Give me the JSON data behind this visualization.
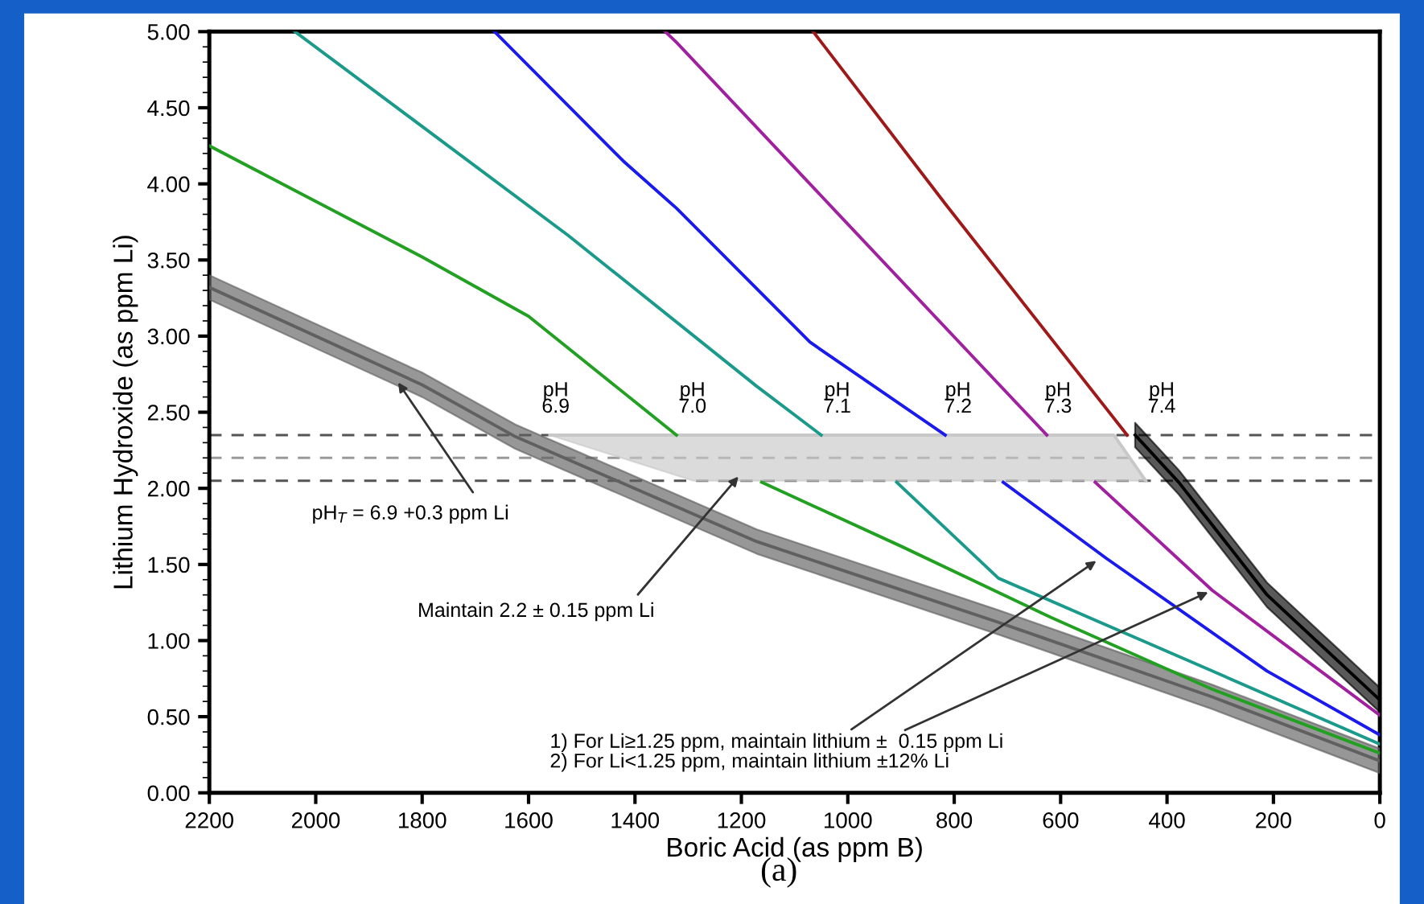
{
  "chart_data": {
    "type": "line",
    "xlabel": "Boric Acid (as ppm B)",
    "ylabel": "Lithium Hydroxide (as ppm Li)",
    "xlim": [
      2200,
      0
    ],
    "xticks": [
      2200,
      2000,
      1800,
      1600,
      1400,
      1200,
      1000,
      800,
      600,
      400,
      200,
      0
    ],
    "ylim": [
      0,
      5
    ],
    "yticks": [
      {
        "value": 0,
        "label": "0.00"
      },
      {
        "value": 0.5,
        "label": "0.50"
      },
      {
        "value": 1,
        "label": "1.00"
      },
      {
        "value": 1.5,
        "label": "1.50"
      },
      {
        "value": 2,
        "label": "2.00"
      },
      {
        "value": 2.5,
        "label": "2.50"
      },
      {
        "value": 3,
        "label": "3.00"
      },
      {
        "value": 3.5,
        "label": "3.50"
      },
      {
        "value": 4,
        "label": "4.00"
      },
      {
        "value": 4.5,
        "label": "4.50"
      },
      {
        "value": 5,
        "label": "5.00"
      }
    ],
    "grid": false,
    "legend": false,
    "series": [
      {
        "color": "#c8c8c8",
        "x": [
          1560,
          1290,
          500,
          440
        ],
        "values": [
          2.35,
          2.35,
          2.35,
          2.05
        ],
        "lower": [
          2.35,
          2.05,
          2.05,
          2.05
        ],
        "upper": [
          2.35,
          2.35,
          2.35,
          2.05
        ]
      },
      {
        "color": "#606060",
        "x": [
          2200,
          1800,
          1625,
          1171,
          717,
          315,
          0
        ],
        "values": [
          3.32,
          2.68,
          2.34,
          1.65,
          1.12,
          0.63,
          0.21
        ],
        "lower": [
          3.24,
          2.6,
          2.26,
          1.57,
          1.04,
          0.55,
          0.13
        ],
        "upper": [
          3.4,
          2.76,
          2.42,
          1.73,
          1.2,
          0.71,
          0.29
        ]
      },
      {
        "color": "#22a022",
        "x": [
          2200,
          1800,
          1600,
          1322,
          null,
          1162,
          900,
          617,
          315,
          0
        ],
        "values": [
          4.25,
          3.52,
          3.13,
          2.35,
          null,
          2.04,
          1.62,
          1.15,
          0.68,
          0.26
        ]
      },
      {
        "color": "#1a9a8a",
        "x": [
          2039,
          1525,
          1171,
          1050,
          null,
          908,
          717,
          315,
          0
        ],
        "values": [
          5,
          3.66,
          2.67,
          2.35,
          null,
          2.04,
          1.41,
          0.8,
          0.32
        ]
      },
      {
        "color": "#1a1aee",
        "x": [
          1664,
          1422,
          1322,
          1071,
          817,
          null,
          708,
          514,
          212,
          0
        ],
        "values": [
          5,
          4.15,
          3.84,
          2.96,
          2.35,
          null,
          2.04,
          1.54,
          0.8,
          0.38
        ]
      },
      {
        "color": "#a020a0",
        "x": [
          1343,
          1322,
          1020,
          626,
          null,
          535,
          315,
          150,
          0
        ],
        "values": [
          5,
          4.93,
          3.81,
          2.35,
          null,
          2.04,
          1.33,
          0.9,
          0.51
        ]
      },
      {
        "color": "#a01818",
        "x": [
          1065,
          817,
          475
        ],
        "values": [
          5,
          3.87,
          2.35
        ]
      },
      {
        "color": "#000000",
        "x": [
          460,
          378,
          212,
          0
        ],
        "values": [
          2.35,
          2.04,
          1.3,
          0.61
        ],
        "lower": [
          2.27,
          1.96,
          1.22,
          0.53
        ],
        "upper": [
          2.43,
          2.12,
          1.38,
          0.69
        ]
      }
    ],
    "ref_lines": [
      {
        "axis": "y",
        "value": 2.35,
        "color": "#555555",
        "line_style": "dashed"
      },
      {
        "axis": "y",
        "value": 2.2,
        "color": "#999999",
        "line_style": "dashed"
      },
      {
        "axis": "y",
        "value": 2.05,
        "color": "#555555",
        "line_style": "dashed"
      }
    ],
    "annotations": [
      "pH\n6.9",
      "pH\n7.0",
      "pH\n7.1",
      "pH\n7.2",
      "pH\n7.3",
      "pH\n7.4",
      {
        "text": "pH$_{T}$ = 6.9 +0.3 ppm Li",
        "x": 1850,
        "y": 2.72
      },
      {
        "text": "Maintain 2.2 ± 0.15 ppm Li",
        "x": 1200,
        "y": 2.1
      },
      {
        "text": "1) For Li≥1.25 ppm, maintain lithium ±  0.15 ppm Li",
        "x": 526,
        "y": 1.54
      },
      {
        "text": "2) For Li<1.25 ppm, maintain lithium ±12% Li",
        "x": 315,
        "y": 1.33
      },
      "(a)"
    ]
  }
}
